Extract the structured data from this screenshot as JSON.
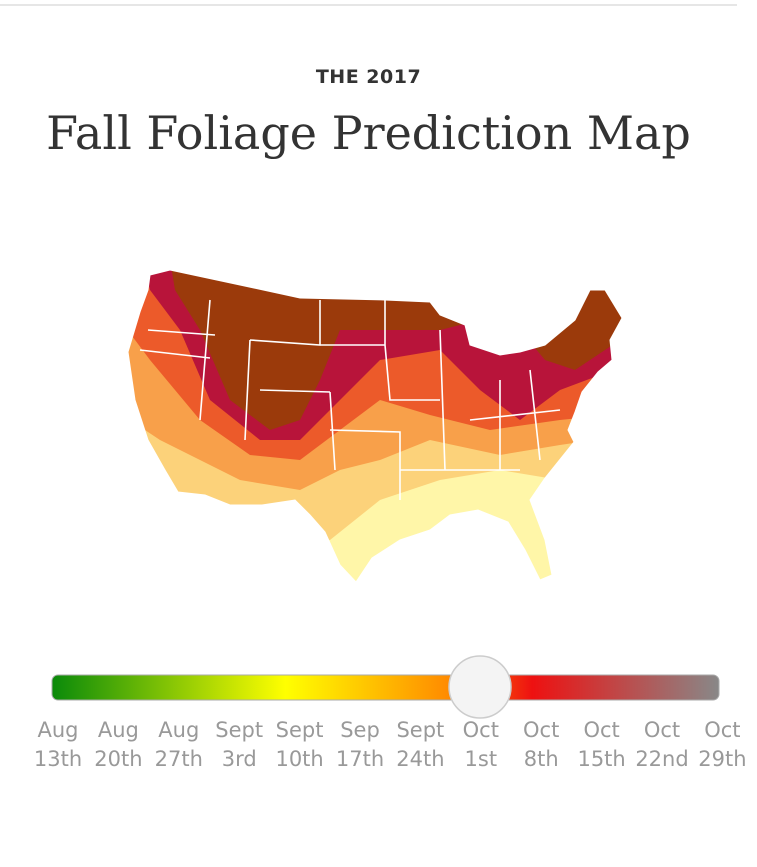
{
  "header": {
    "kicker": "THE 2017",
    "title": "Fall Foliage Prediction Map"
  },
  "slider": {
    "labels": [
      [
        "Aug",
        "13th"
      ],
      [
        "Aug",
        "20th"
      ],
      [
        "Aug",
        "27th"
      ],
      [
        "Sept",
        "3rd"
      ],
      [
        "Sept",
        "10th"
      ],
      [
        "Sep",
        "17th"
      ],
      [
        "Sept",
        "24th"
      ],
      [
        "Oct",
        "1st"
      ],
      [
        "Oct",
        "8th"
      ],
      [
        "Oct",
        "15th"
      ],
      [
        "Oct",
        "22nd"
      ],
      [
        "Oct",
        "29th"
      ]
    ]
  }
}
